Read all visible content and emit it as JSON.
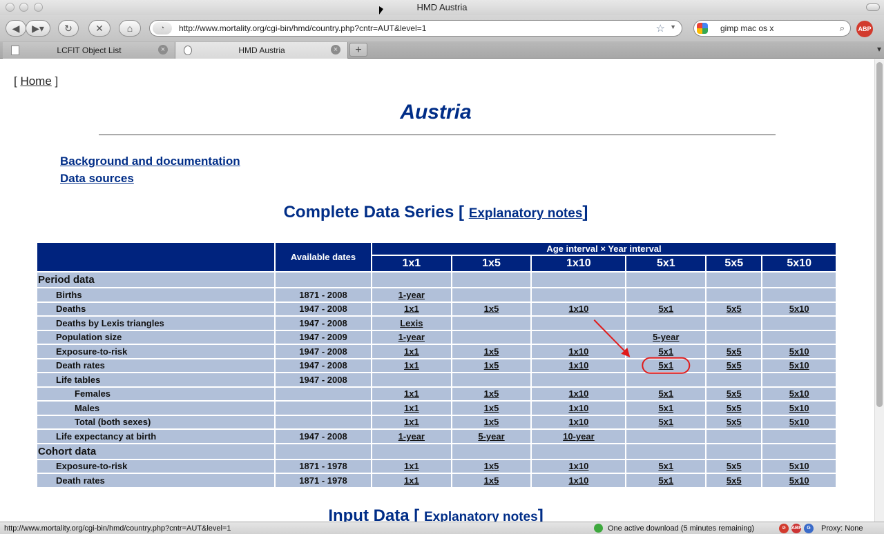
{
  "window": {
    "title": "HMD Austria"
  },
  "toolbar": {
    "url": "http://www.mortality.org/cgi-bin/hmd/country.php?cntr=AUT&level=1",
    "search_value": "gimp mac os x",
    "abp_label": "ABP"
  },
  "tabs": [
    {
      "label": "LCFIT Object List",
      "active": false
    },
    {
      "label": "HMD Austria",
      "active": true
    }
  ],
  "page": {
    "home_label": "Home",
    "title": "Austria",
    "links": [
      "Background and documentation",
      "Data sources"
    ],
    "section_title": "Complete Data Series",
    "explanatory_notes": "Explanatory notes",
    "input_section_title": "Input Data"
  },
  "table": {
    "dates_header": "Available dates",
    "group_header": "Age interval × Year interval",
    "columns": [
      "1x1",
      "1x5",
      "1x10",
      "5x1",
      "5x5",
      "5x10"
    ],
    "rows": [
      {
        "label": "Period data",
        "type": "section",
        "dates": "",
        "cells": [
          "",
          "",
          "",
          "",
          "",
          ""
        ]
      },
      {
        "label": "Births",
        "type": "l1",
        "dates": "1871 - 2008",
        "cells": [
          "1-year",
          "",
          "",
          "",
          "",
          ""
        ]
      },
      {
        "label": "Deaths",
        "type": "l1",
        "dates": "1947 - 2008",
        "cells": [
          "1x1",
          "1x5",
          "1x10",
          "5x1",
          "5x5",
          "5x10"
        ]
      },
      {
        "label": "Deaths by Lexis triangles",
        "type": "l1",
        "dates": "1947 - 2008",
        "cells": [
          "Lexis",
          "",
          "",
          "",
          "",
          ""
        ]
      },
      {
        "label": "Population size",
        "type": "l1",
        "dates": "1947 - 2009",
        "cells": [
          "1-year",
          "",
          "",
          "5-year",
          "",
          ""
        ]
      },
      {
        "label": "Exposure-to-risk",
        "type": "l1",
        "dates": "1947 - 2008",
        "cells": [
          "1x1",
          "1x5",
          "1x10",
          "5x1",
          "5x5",
          "5x10"
        ]
      },
      {
        "label": "Death rates",
        "type": "l1",
        "dates": "1947 - 2008",
        "cells": [
          "1x1",
          "1x5",
          "1x10",
          "5x1",
          "5x5",
          "5x10"
        ]
      },
      {
        "label": "Life tables",
        "type": "l1",
        "dates": "1947 - 2008",
        "cells": [
          "",
          "",
          "",
          "",
          "",
          ""
        ]
      },
      {
        "label": "Females",
        "type": "l2",
        "dates": "",
        "cells": [
          "1x1",
          "1x5",
          "1x10",
          "5x1",
          "5x5",
          "5x10"
        ]
      },
      {
        "label": "Males",
        "type": "l2",
        "dates": "",
        "cells": [
          "1x1",
          "1x5",
          "1x10",
          "5x1",
          "5x5",
          "5x10"
        ]
      },
      {
        "label": "Total (both sexes)",
        "type": "l2",
        "dates": "",
        "cells": [
          "1x1",
          "1x5",
          "1x10",
          "5x1",
          "5x5",
          "5x10"
        ]
      },
      {
        "label": "Life expectancy at birth",
        "type": "l1",
        "dates": "1947 - 2008",
        "cells": [
          "1-year",
          "5-year",
          "10-year",
          "",
          "",
          ""
        ]
      },
      {
        "label": "Cohort data",
        "type": "section",
        "dates": "",
        "cells": [
          "",
          "",
          "",
          "",
          "",
          ""
        ]
      },
      {
        "label": "Exposure-to-risk",
        "type": "l1",
        "dates": "1871 - 1978",
        "cells": [
          "1x1",
          "1x5",
          "1x10",
          "5x1",
          "5x5",
          "5x10"
        ]
      },
      {
        "label": "Death rates",
        "type": "l1",
        "dates": "1871 - 1978",
        "cells": [
          "1x1",
          "1x5",
          "1x10",
          "5x1",
          "5x5",
          "5x10"
        ]
      }
    ]
  },
  "annotation": {
    "color": "#e01b1b",
    "target": "Death rates 5x1"
  },
  "status": {
    "url": "http://www.mortality.org/cgi-bin/hmd/country.php?cntr=AUT&level=1",
    "download": "One active download (5 minutes remaining)",
    "proxy": "Proxy: None"
  }
}
